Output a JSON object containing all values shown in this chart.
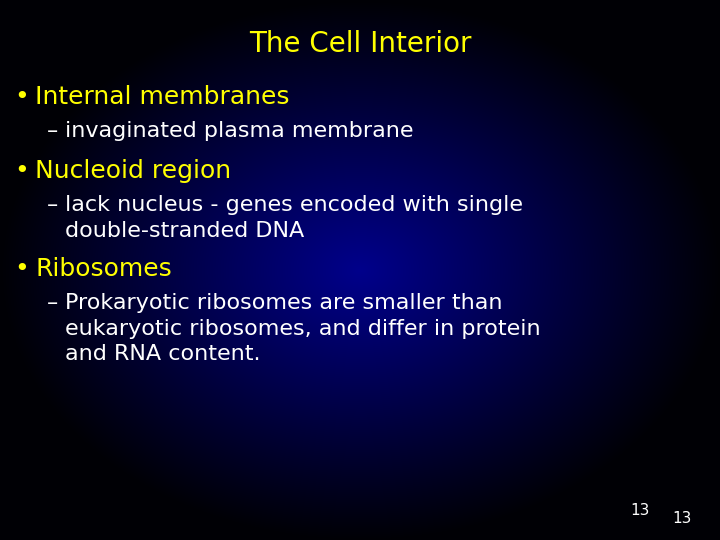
{
  "title": "The Cell Interior",
  "title_color": "#FFFF00",
  "title_fontsize": 20,
  "bg_center_color": "#00008B",
  "bg_edge_color": "#000005",
  "bullet_color": "#FFFF00",
  "sub_color": "#FFFFFF",
  "bullet_fontsize": 18,
  "sub_fontsize": 16,
  "page_number": "13",
  "page_number_color": "#FFFFFF",
  "page_number_fontsize": 11,
  "content": [
    {
      "bullet": "Internal membranes",
      "subs": [
        "invaginated plasma membrane"
      ],
      "sub_lines": [
        1
      ]
    },
    {
      "bullet": "Nucleoid region",
      "subs": [
        "lack nucleus - genes encoded with single\ndouble-stranded DNA"
      ],
      "sub_lines": [
        2
      ]
    },
    {
      "bullet": "Ribosomes",
      "subs": [
        "Prokaryotic ribosomes are smaller than\neukaryotic ribosomes, and differ in protein\nand RNA content."
      ],
      "sub_lines": [
        3
      ]
    }
  ]
}
